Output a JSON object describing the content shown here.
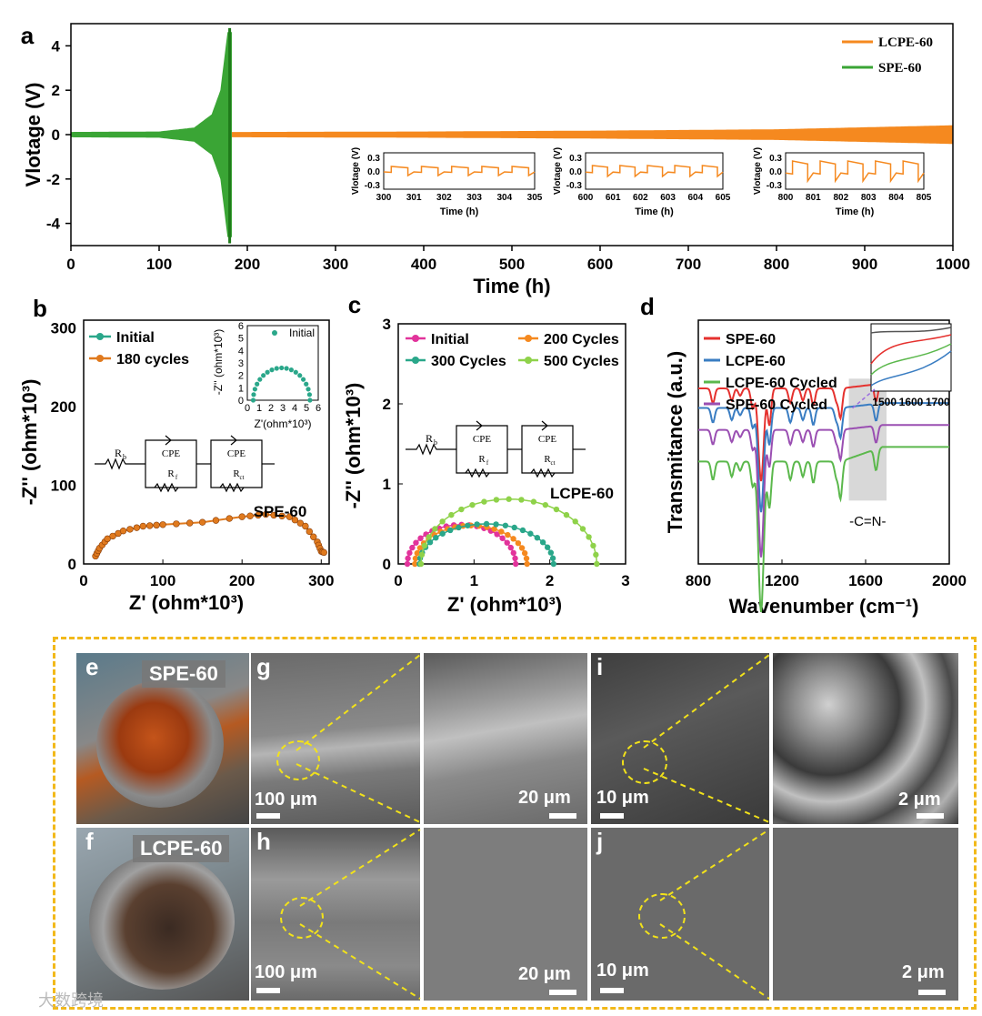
{
  "panel_letters": {
    "a": "a",
    "b": "b",
    "c": "c",
    "d": "d",
    "e": "e",
    "f": "f",
    "g": "g",
    "h": "h",
    "i": "i",
    "j": "j"
  },
  "colors": {
    "orange": "#f5891f",
    "green": "#3aa535",
    "spe_b": "#e07a1e",
    "teal": "#2aa78a",
    "pink": "#e2339b",
    "lime": "#8fd24a",
    "red": "#e5312e",
    "blue": "#3a7dc2",
    "lgreen": "#5bb84c",
    "purple": "#9a4fb2",
    "gray_band": "#d8d8d8"
  },
  "chart_data": [
    {
      "id": "a",
      "type": "line",
      "xlabel": "Time (h)",
      "ylabel": "Vlotage (V)",
      "xlim": [
        0,
        1000
      ],
      "ylim": [
        -5,
        5
      ],
      "xticks": [
        0,
        100,
        200,
        300,
        400,
        500,
        600,
        700,
        800,
        900,
        1000
      ],
      "yticks": [
        -4,
        -2,
        0,
        2,
        4
      ],
      "legend": "top-right",
      "series": [
        {
          "name": "LCPE-60",
          "color": "#f5891f",
          "envelope": [
            [
              0,
              0.1
            ],
            [
              200,
              0.1
            ],
            [
              400,
              0.12
            ],
            [
              600,
              0.16
            ],
            [
              800,
              0.22
            ],
            [
              1000,
              0.4
            ]
          ]
        },
        {
          "name": "SPE-60",
          "color": "#3aa535",
          "envelope": [
            [
              0,
              0.1
            ],
            [
              100,
              0.12
            ],
            [
              140,
              0.3
            ],
            [
              160,
              0.9
            ],
            [
              170,
              2.0
            ],
            [
              178,
              4.6
            ],
            [
              182,
              4.6
            ]
          ]
        }
      ],
      "insets": [
        {
          "xlabel": "Time (h)",
          "ylabel": "Vlotage (V)",
          "xticks": [
            300,
            301,
            302,
            303,
            304,
            305
          ],
          "yticks": [
            0.3,
            0.0,
            -0.3
          ],
          "amplitude": 0.1
        },
        {
          "xlabel": "Time (h)",
          "ylabel": "Vlotage (V)",
          "xticks": [
            600,
            601,
            602,
            603,
            604,
            605
          ],
          "yticks": [
            0.3,
            0.0,
            -0.3
          ],
          "amplitude": 0.12
        },
        {
          "xlabel": "Time (h)",
          "ylabel": "Vlotage (V)",
          "xticks": [
            800,
            801,
            802,
            803,
            804,
            805
          ],
          "yticks": [
            0.3,
            0.0,
            -0.3
          ],
          "amplitude": 0.22
        }
      ]
    },
    {
      "id": "b",
      "type": "scatter",
      "xlabel": "Z' (ohm*10³)",
      "ylabel": "-Z'' (ohm*10³)",
      "xlim": [
        0,
        310
      ],
      "ylim": [
        0,
        310
      ],
      "xticks": [
        0,
        100,
        200,
        300
      ],
      "yticks": [
        0,
        100,
        200,
        300
      ],
      "legend": "top-left",
      "annotation": "SPE-60",
      "series": [
        {
          "name": "Initial",
          "color": "#2aa78a",
          "x_start": 0.5,
          "x_end": 5.3,
          "y_max": 2.6
        },
        {
          "name": "180 cycles",
          "color": "#e07a1e",
          "x": [
            15,
            20,
            30,
            50,
            75,
            100,
            150,
            200,
            230,
            260,
            280,
            295,
            300,
            305
          ],
          "y": [
            10,
            20,
            32,
            42,
            48,
            50,
            53,
            60,
            63,
            60,
            48,
            28,
            16,
            14
          ]
        }
      ],
      "inset": {
        "xlabel": "Z'(ohm*10³)",
        "ylabel": "-Z'' (ohm*10³)",
        "legend": "Initial",
        "xticks": [
          0,
          1,
          2,
          3,
          4,
          5,
          6
        ],
        "yticks": [
          0,
          1,
          2,
          3,
          4,
          5,
          6
        ]
      },
      "circuit": {
        "rb": "R",
        "rb_sub": "b",
        "cpe1": "CPE",
        "rf": "R",
        "rf_sub": "f",
        "cpe2": "CPE",
        "rct": "R",
        "rct_sub": "ct"
      }
    },
    {
      "id": "c",
      "type": "scatter",
      "xlabel": "Z' (ohm*10³)",
      "ylabel": "-Z'' (ohm*10³)",
      "xlim": [
        0,
        3
      ],
      "ylim": [
        0,
        3
      ],
      "xticks": [
        0,
        1,
        2,
        3
      ],
      "yticks": [
        0,
        1,
        2,
        3
      ],
      "legend": "top",
      "annotation": "LCPE-60",
      "series": [
        {
          "name": "Initial",
          "color": "#e2339b",
          "x_start": 0.12,
          "x_end": 1.55,
          "y_max": 0.49
        },
        {
          "name": "200 Cycles",
          "color": "#f5891f",
          "x_start": 0.22,
          "x_end": 1.7,
          "y_max": 0.48
        },
        {
          "name": "300 Cycles",
          "color": "#2aa78a",
          "x_start": 0.28,
          "x_end": 2.05,
          "y_max": 0.5
        },
        {
          "name": "500 Cycles",
          "color": "#8fd24a",
          "x_start": 0.3,
          "x_end": 2.62,
          "y_max": 0.81
        }
      ],
      "circuit": {
        "rb": "R",
        "rb_sub": "b",
        "cpe1": "CPE",
        "rf": "R",
        "rf_sub": "f",
        "cpe2": "CPE",
        "rct": "R",
        "rct_sub": "ct"
      }
    },
    {
      "id": "d",
      "type": "line",
      "xlabel": "Wavenumber (cm⁻¹)",
      "ylabel": "Transmitance (a.u.)",
      "xlim": [
        800,
        2000
      ],
      "xticks": [
        800,
        1200,
        1600,
        2000
      ],
      "legend": "top-left",
      "band_label": "-C=N-",
      "band": [
        1520,
        1700
      ],
      "series": [
        {
          "name": "SPE-60",
          "color": "#e5312e",
          "offset": 0.72
        },
        {
          "name": "LCPE-60",
          "color": "#3a7dc2",
          "offset": 0.64
        },
        {
          "name": "LCPE-60 Cycled",
          "color": "#5bb84c",
          "offset": 0.42
        },
        {
          "name": "SPE-60 Cycled",
          "color": "#9a4fb2",
          "offset": 0.55
        }
      ],
      "inset": {
        "xticks": [
          1500,
          1600,
          1700
        ]
      }
    }
  ],
  "photos": {
    "e_tag": "SPE-60",
    "f_tag": "LCPE-60",
    "g_scale1": "100 μm",
    "g_scale2": "20 μm",
    "h_scale1": "100 μm",
    "h_scale2": "20 μm",
    "i_scale1": "10 μm",
    "i_scale2": "2 μm",
    "j_scale1": "10 μm",
    "j_scale2": "2 μm"
  },
  "watermark": "大数跨境"
}
